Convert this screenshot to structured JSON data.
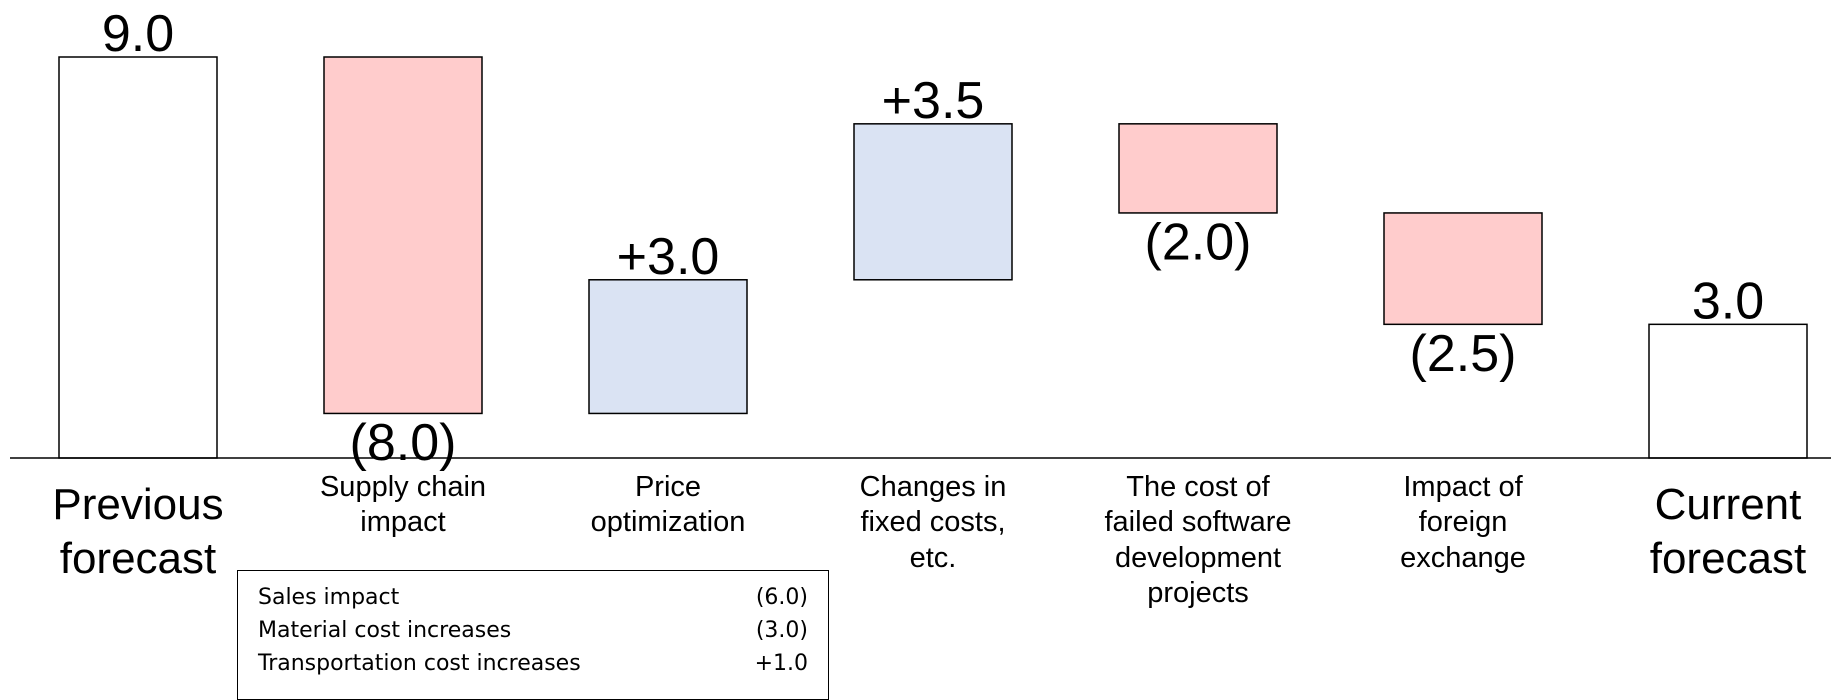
{
  "chart_data": {
    "type": "waterfall",
    "categories": [
      "Previous\nforecast",
      "Supply chain\nimpact",
      "Price\noptimization",
      "Changes in\nfixed costs,\netc.",
      "The cost of\nfailed software\ndevelopment\nprojects",
      "Impact of\nforeign\nexchange",
      "Current\nforecast"
    ],
    "values": [
      9.0,
      -8.0,
      3.0,
      3.5,
      -2.0,
      -2.5,
      3.0
    ],
    "value_labels": [
      "9.0",
      "(8.0)",
      "+3.0",
      "+3.5",
      "(2.0)",
      "(2.5)",
      "3.0"
    ],
    "total": [
      true,
      false,
      false,
      false,
      false,
      false,
      true
    ],
    "colors": {
      "total": "#ffffff",
      "increase": "#dae3f3",
      "decrease": "#ffcccc"
    }
  },
  "breakdown": {
    "rows": [
      [
        "Sales impact",
        "(6.0)"
      ],
      [
        "Material cost increases",
        "(3.0)"
      ],
      [
        "Transportation cost increases",
        "+1.0"
      ]
    ]
  }
}
